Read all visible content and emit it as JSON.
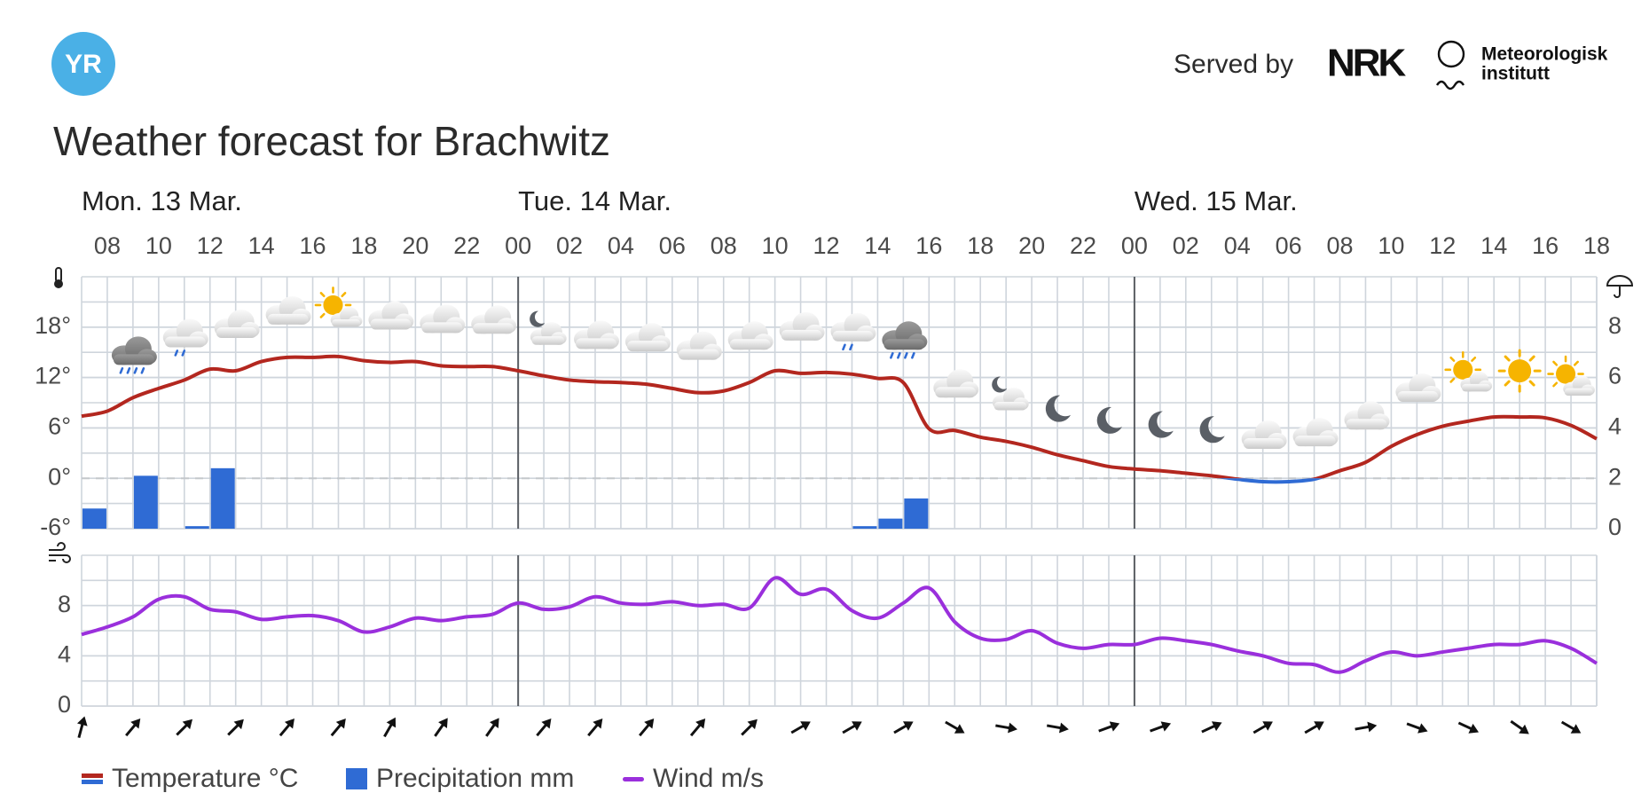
{
  "header": {
    "logo": "YR",
    "served_by": "Served by",
    "nrk": "NRK",
    "met": [
      "Meteorologisk",
      "institutt"
    ]
  },
  "chart_data": [
    {
      "type": "line",
      "title": "Weather forecast for Brachwitz",
      "days": [
        {
          "label": "Mon. 13 Mar.",
          "x": 0
        },
        {
          "label": "Tue. 14 Mar.",
          "x": 17
        },
        {
          "label": "Wed. 15 Mar.",
          "x": 41
        }
      ],
      "xlim": [
        0,
        59
      ],
      "xticks": [
        {
          "value": 1,
          "label": "08"
        },
        {
          "value": 3,
          "label": "10"
        },
        {
          "value": 5,
          "label": "12"
        },
        {
          "value": 7,
          "label": "14"
        },
        {
          "value": 9,
          "label": "16"
        },
        {
          "value": 11,
          "label": "18"
        },
        {
          "value": 13,
          "label": "20"
        },
        {
          "value": 15,
          "label": "22"
        },
        {
          "value": 17,
          "label": "00"
        },
        {
          "value": 19,
          "label": "02"
        },
        {
          "value": 21,
          "label": "04"
        },
        {
          "value": 23,
          "label": "06"
        },
        {
          "value": 25,
          "label": "08"
        },
        {
          "value": 27,
          "label": "10"
        },
        {
          "value": 29,
          "label": "12"
        },
        {
          "value": 31,
          "label": "14"
        },
        {
          "value": 33,
          "label": "16"
        },
        {
          "value": 35,
          "label": "18"
        },
        {
          "value": 37,
          "label": "20"
        },
        {
          "value": 39,
          "label": "22"
        },
        {
          "value": 41,
          "label": "00"
        },
        {
          "value": 43,
          "label": "02"
        },
        {
          "value": 45,
          "label": "04"
        },
        {
          "value": 47,
          "label": "06"
        },
        {
          "value": 49,
          "label": "08"
        },
        {
          "value": 51,
          "label": "10"
        },
        {
          "value": 53,
          "label": "12"
        },
        {
          "value": 55,
          "label": "14"
        },
        {
          "value": 57,
          "label": "16"
        },
        {
          "value": 59,
          "label": "18"
        }
      ],
      "ylim": [
        -6,
        24
      ],
      "yticks": [
        {
          "value": -6,
          "label": "-6°"
        },
        {
          "value": 0,
          "label": "0°"
        },
        {
          "value": 6,
          "label": "6°"
        },
        {
          "value": 12,
          "label": "12°"
        },
        {
          "value": 18,
          "label": "18°"
        }
      ],
      "y2lim": [
        0,
        10
      ],
      "y2ticks": [
        0,
        2,
        4,
        6,
        8
      ],
      "grid": true,
      "series": [
        {
          "name": "Temperature °C",
          "color": "#b3271f",
          "color_below_zero": "#2f6bd4",
          "x": [
            0,
            1,
            2,
            3,
            4,
            5,
            6,
            7,
            8,
            9,
            10,
            11,
            12,
            13,
            14,
            15,
            16,
            17,
            18,
            19,
            20,
            21,
            22,
            23,
            24,
            25,
            26,
            27,
            28,
            29,
            30,
            31,
            32,
            33,
            34,
            35,
            36,
            37,
            38,
            39,
            40,
            41,
            42,
            43,
            44,
            45,
            46,
            47,
            48,
            49,
            50,
            51,
            52,
            53,
            54,
            55,
            56,
            57,
            58,
            59
          ],
          "values": [
            7.4,
            8.0,
            9.6,
            10.7,
            11.7,
            13.0,
            12.8,
            13.9,
            14.4,
            14.4,
            14.5,
            14.0,
            13.8,
            13.9,
            13.4,
            13.3,
            13.3,
            12.8,
            12.2,
            11.7,
            11.5,
            11.4,
            11.2,
            10.7,
            10.2,
            10.4,
            11.4,
            12.8,
            12.5,
            12.6,
            12.4,
            11.9,
            11.4,
            5.9,
            5.7,
            4.9,
            4.4,
            3.7,
            2.8,
            2.1,
            1.4,
            1.1,
            0.9,
            0.6,
            0.3,
            -0.1,
            -0.4,
            -0.4,
            -0.1,
            0.9,
            1.9,
            3.8,
            5.2,
            6.2,
            6.8,
            7.3,
            7.3,
            7.2,
            6.3,
            4.7
          ]
        },
        {
          "name": "Precipitation mm",
          "type": "bar",
          "color": "#2f6bd4",
          "axis": "y2",
          "x": [
            0,
            2,
            4,
            5,
            30,
            31,
            32
          ],
          "values": [
            0.8,
            2.1,
            0.1,
            2.4,
            0.1,
            0.4,
            1.2
          ]
        }
      ]
    },
    {
      "type": "line",
      "xlim": [
        0,
        59
      ],
      "ylim": [
        0,
        12
      ],
      "yticks": [
        0,
        4,
        8
      ],
      "grid": true,
      "series": [
        {
          "name": "Wind m/s",
          "color": "#9a2fdc",
          "x": [
            0,
            1,
            2,
            3,
            4,
            5,
            6,
            7,
            8,
            9,
            10,
            11,
            12,
            13,
            14,
            15,
            16,
            17,
            18,
            19,
            20,
            21,
            22,
            23,
            24,
            25,
            26,
            27,
            28,
            29,
            30,
            31,
            32,
            33,
            34,
            35,
            36,
            37,
            38,
            39,
            40,
            41,
            42,
            43,
            44,
            45,
            46,
            47,
            48,
            49,
            50,
            51,
            52,
            53,
            54,
            55,
            56,
            57,
            58,
            59
          ],
          "values": [
            5.7,
            6.3,
            7.1,
            8.5,
            8.7,
            7.7,
            7.5,
            6.9,
            7.1,
            7.2,
            6.8,
            5.9,
            6.3,
            7.0,
            6.8,
            7.1,
            7.3,
            8.2,
            7.7,
            7.9,
            8.7,
            8.2,
            8.1,
            8.3,
            8.0,
            8.1,
            7.8,
            10.2,
            8.9,
            9.3,
            7.6,
            7.0,
            8.2,
            9.4,
            6.7,
            5.4,
            5.3,
            6.0,
            5.0,
            4.6,
            4.9,
            4.9,
            5.4,
            5.2,
            4.9,
            4.4,
            4.0,
            3.4,
            3.3,
            2.7,
            3.6,
            4.3,
            4.0,
            4.3,
            4.6,
            4.9,
            4.9,
            5.2,
            4.6,
            3.4
          ]
        }
      ],
      "wind_direction": {
        "x": [
          0,
          2,
          4,
          6,
          8,
          10,
          12,
          14,
          16,
          18,
          20,
          22,
          24,
          26,
          28,
          30,
          32,
          34,
          36,
          38,
          40,
          42,
          44,
          46,
          48,
          50,
          52,
          54,
          56,
          58
        ],
        "values": [
          15,
          40,
          45,
          45,
          40,
          40,
          30,
          35,
          35,
          40,
          40,
          40,
          40,
          45,
          60,
          60,
          60,
          120,
          100,
          100,
          70,
          70,
          65,
          60,
          60,
          80,
          110,
          115,
          125,
          120
        ]
      }
    }
  ]
}
